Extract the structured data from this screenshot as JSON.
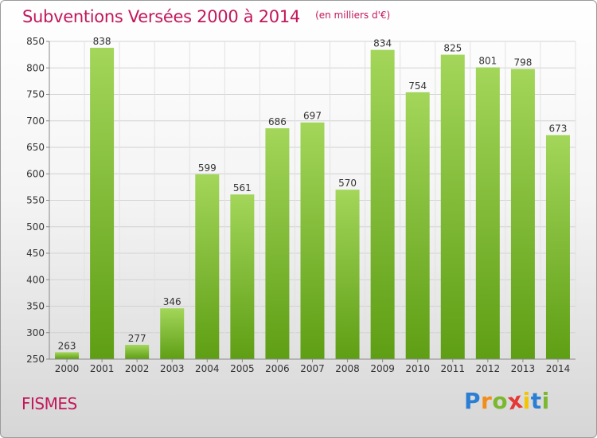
{
  "chart_data": {
    "type": "bar",
    "title": "Subventions Versées 2000 à 2014",
    "subtitle": "(en milliers d'€)",
    "categories": [
      "2000",
      "2001",
      "2002",
      "2003",
      "2004",
      "2005",
      "2006",
      "2007",
      "2008",
      "2009",
      "2010",
      "2011",
      "2012",
      "2013",
      "2014"
    ],
    "values": [
      263,
      838,
      277,
      346,
      599,
      561,
      686,
      697,
      570,
      834,
      754,
      825,
      801,
      798,
      673
    ],
    "ylim": [
      250,
      850
    ],
    "yticks": [
      250,
      300,
      350,
      400,
      450,
      500,
      550,
      600,
      650,
      700,
      750,
      800,
      850
    ],
    "grid": true,
    "legend": "none",
    "bar_color": "#7cc22e",
    "xlabel": "",
    "ylabel": ""
  },
  "footer": {
    "commune": "FISMES",
    "brand_letters": [
      "P",
      "r",
      "o",
      "x",
      "i",
      "t",
      "i"
    ],
    "brand_colors": [
      "#2a7fd4",
      "#f28c1a",
      "#7cb82f",
      "#e53935",
      "#f5c400",
      "#2a7fd4",
      "#7cb82f"
    ]
  }
}
